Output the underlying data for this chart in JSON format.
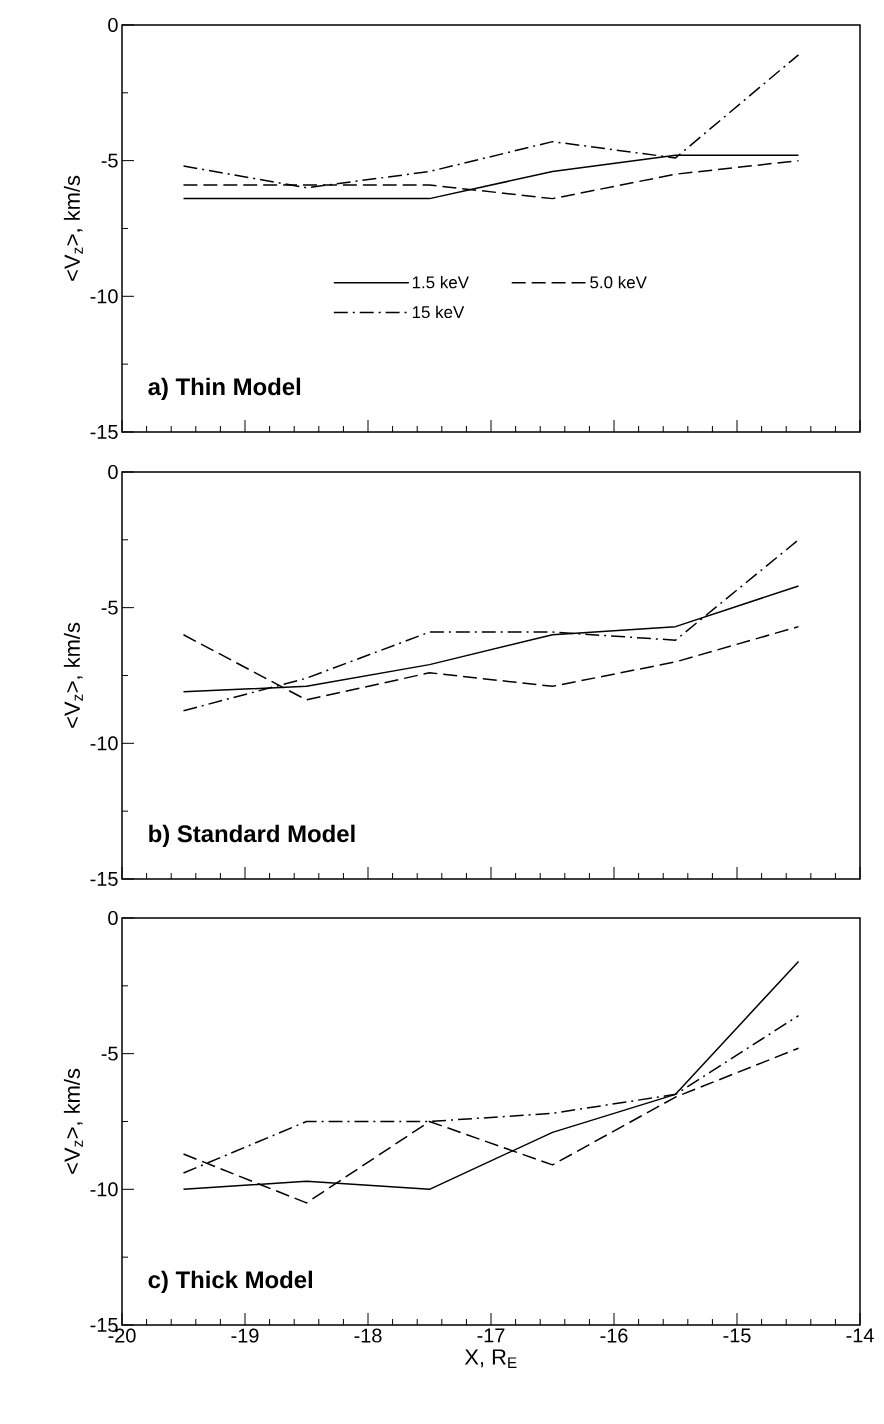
{
  "chart_data": [
    {
      "type": "line",
      "annotations": [
        "a) Thin Model"
      ],
      "ylabel": "<V$_{z}$>, km/s",
      "x": [
        -19.5,
        -18.5,
        -17.5,
        -16.5,
        -15.5,
        -14.5
      ],
      "xlim": [
        -20,
        -14
      ],
      "xticks": [
        -20,
        -19,
        -18,
        -17,
        -16,
        -15,
        -14
      ],
      "ylim": [
        -15,
        0
      ],
      "yticks": [
        -15,
        -10,
        -5,
        0
      ],
      "tick_labels": "y",
      "legend": "center",
      "grid": false,
      "marker": "none",
      "series": [
        {
          "name": "1.5 keV",
          "color": "#000000",
          "line_style": "solid",
          "values": [
            -6.4,
            -6.4,
            -6.4,
            -5.4,
            -4.8,
            -4.8
          ]
        },
        {
          "name": "5.0 keV",
          "color": "#000000",
          "line_style": "dashed",
          "values": [
            -5.9,
            -5.9,
            -5.9,
            -6.4,
            -5.5,
            -5.0
          ]
        },
        {
          "name": "15 keV",
          "color": "#000000",
          "line_style": "dashdot",
          "values": [
            -5.2,
            -6.0,
            -5.4,
            -4.3,
            -4.9,
            -1.1
          ]
        }
      ]
    },
    {
      "type": "line",
      "annotations": [
        "b) Standard Model"
      ],
      "ylabel": "<V$_{z}$>, km/s",
      "x": [
        -19.5,
        -18.5,
        -17.5,
        -16.5,
        -15.5,
        -14.5
      ],
      "xlim": [
        -20,
        -14
      ],
      "xticks": [
        -20,
        -19,
        -18,
        -17,
        -16,
        -15,
        -14
      ],
      "ylim": [
        -15,
        0
      ],
      "yticks": [
        -15,
        -10,
        -5,
        0
      ],
      "tick_labels": "y",
      "grid": false,
      "marker": "none",
      "series": [
        {
          "color": "#000000",
          "line_style": "solid",
          "values": [
            -8.1,
            -7.9,
            -7.1,
            -6.0,
            -5.7,
            -4.2
          ]
        },
        {
          "color": "#000000",
          "line_style": "dashed",
          "values": [
            -6.0,
            -8.4,
            -7.4,
            -7.9,
            -7.0,
            -5.7
          ]
        },
        {
          "color": "#000000",
          "line_style": "dashdot",
          "values": [
            -8.8,
            -7.6,
            -5.9,
            -5.9,
            -6.2,
            -2.5
          ]
        }
      ]
    },
    {
      "type": "line",
      "annotations": [
        "c) Thick Model"
      ],
      "ylabel": "<V$_{z}$>, km/s",
      "xlabel": "X, R$_{E}$",
      "x": [
        -19.5,
        -18.5,
        -17.5,
        -16.5,
        -15.5,
        -14.5
      ],
      "xlim": [
        -20,
        -14
      ],
      "xticks": [
        -20,
        -19,
        -18,
        -17,
        -16,
        -15,
        -14
      ],
      "ylim": [
        -15,
        0
      ],
      "yticks": [
        -15,
        -10,
        -5,
        0
      ],
      "grid": false,
      "marker": "none",
      "series": [
        {
          "color": "#000000",
          "line_style": "solid",
          "values": [
            -10.0,
            -9.7,
            -10.0,
            -7.9,
            -6.5,
            -1.6
          ]
        },
        {
          "color": "#000000",
          "line_style": "dashed",
          "values": [
            -8.7,
            -10.5,
            -7.5,
            -9.1,
            -6.6,
            -4.8
          ]
        },
        {
          "color": "#000000",
          "line_style": "dashdot",
          "values": [
            -9.4,
            -7.5,
            -7.5,
            -7.2,
            -6.5,
            -3.6
          ]
        }
      ]
    }
  ]
}
